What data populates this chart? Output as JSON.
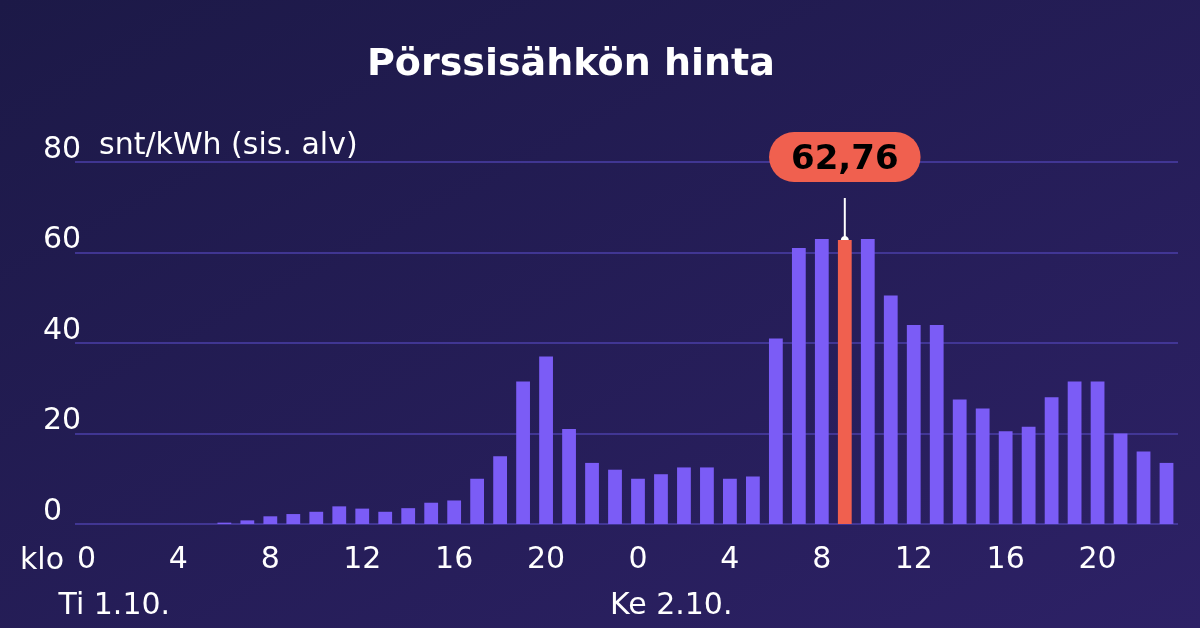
{
  "chart_data": {
    "type": "bar",
    "title": "Pörssisähkön hinta",
    "ylabel": "snt/kWh (sis. alv)",
    "categories": [
      "0",
      null,
      null,
      null,
      "4",
      null,
      null,
      null,
      "8",
      null,
      null,
      null,
      "12",
      null,
      null,
      null,
      "16",
      null,
      null,
      null,
      "20",
      null,
      null,
      null,
      "0",
      null,
      null,
      null,
      "4",
      null,
      null,
      null,
      "8",
      null,
      null,
      null,
      "12",
      null,
      null,
      null,
      "16",
      null,
      null,
      null,
      "20",
      null,
      null,
      null
    ],
    "values": [
      0,
      0,
      0,
      0,
      0,
      0,
      0.3,
      0.8,
      1.7,
      2.2,
      2.7,
      3.9,
      3.4,
      2.7,
      3.5,
      4.7,
      5.2,
      10,
      15,
      31.5,
      37,
      21,
      13.5,
      12,
      10,
      11,
      12.5,
      12.5,
      10,
      10.5,
      41,
      61,
      63,
      62.76,
      63,
      50.5,
      44,
      44,
      27.5,
      25.5,
      20.5,
      21.5,
      28,
      31.5,
      31.5,
      20,
      16,
      13.5
    ],
    "colors": [
      "#7b5cf6",
      "#7b5cf6",
      "#7b5cf6",
      "#7b5cf6",
      "#7b5cf6",
      "#7b5cf6",
      "#7b5cf6",
      "#7b5cf6",
      "#7b5cf6",
      "#7b5cf6",
      "#7b5cf6",
      "#7b5cf6",
      "#7b5cf6",
      "#7b5cf6",
      "#7b5cf6",
      "#7b5cf6",
      "#7b5cf6",
      "#7b5cf6",
      "#7b5cf6",
      "#7b5cf6",
      "#7b5cf6",
      "#7b5cf6",
      "#7b5cf6",
      "#7b5cf6",
      "#7b5cf6",
      "#7b5cf6",
      "#7b5cf6",
      "#7b5cf6",
      "#7b5cf6",
      "#7b5cf6",
      "#7b5cf6",
      "#7b5cf6",
      "#7b5cf6",
      "#f0604f",
      "#7b5cf6",
      "#7b5cf6",
      "#7b5cf6",
      "#7b5cf6",
      "#7b5cf6",
      "#7b5cf6",
      "#7b5cf6",
      "#7b5cf6",
      "#7b5cf6",
      "#7b5cf6",
      "#7b5cf6",
      "#7b5cf6",
      "#7b5cf6",
      "#7b5cf6"
    ],
    "value_labels": [
      null,
      null,
      null,
      null,
      null,
      null,
      null,
      null,
      null,
      null,
      null,
      null,
      null,
      null,
      null,
      null,
      null,
      null,
      null,
      null,
      null,
      null,
      null,
      null,
      null,
      null,
      null,
      null,
      null,
      null,
      null,
      null,
      null,
      "62,76",
      null,
      null,
      null,
      null,
      null,
      null,
      null,
      null,
      null,
      null,
      null,
      null,
      null,
      null
    ],
    "ylim": [
      0,
      80
    ],
    "yticks": [
      0,
      20,
      40,
      60,
      80
    ],
    "grid": "y",
    "annotations": [
      "klo",
      "Ti 1.10.",
      "Ke 2.10."
    ]
  }
}
